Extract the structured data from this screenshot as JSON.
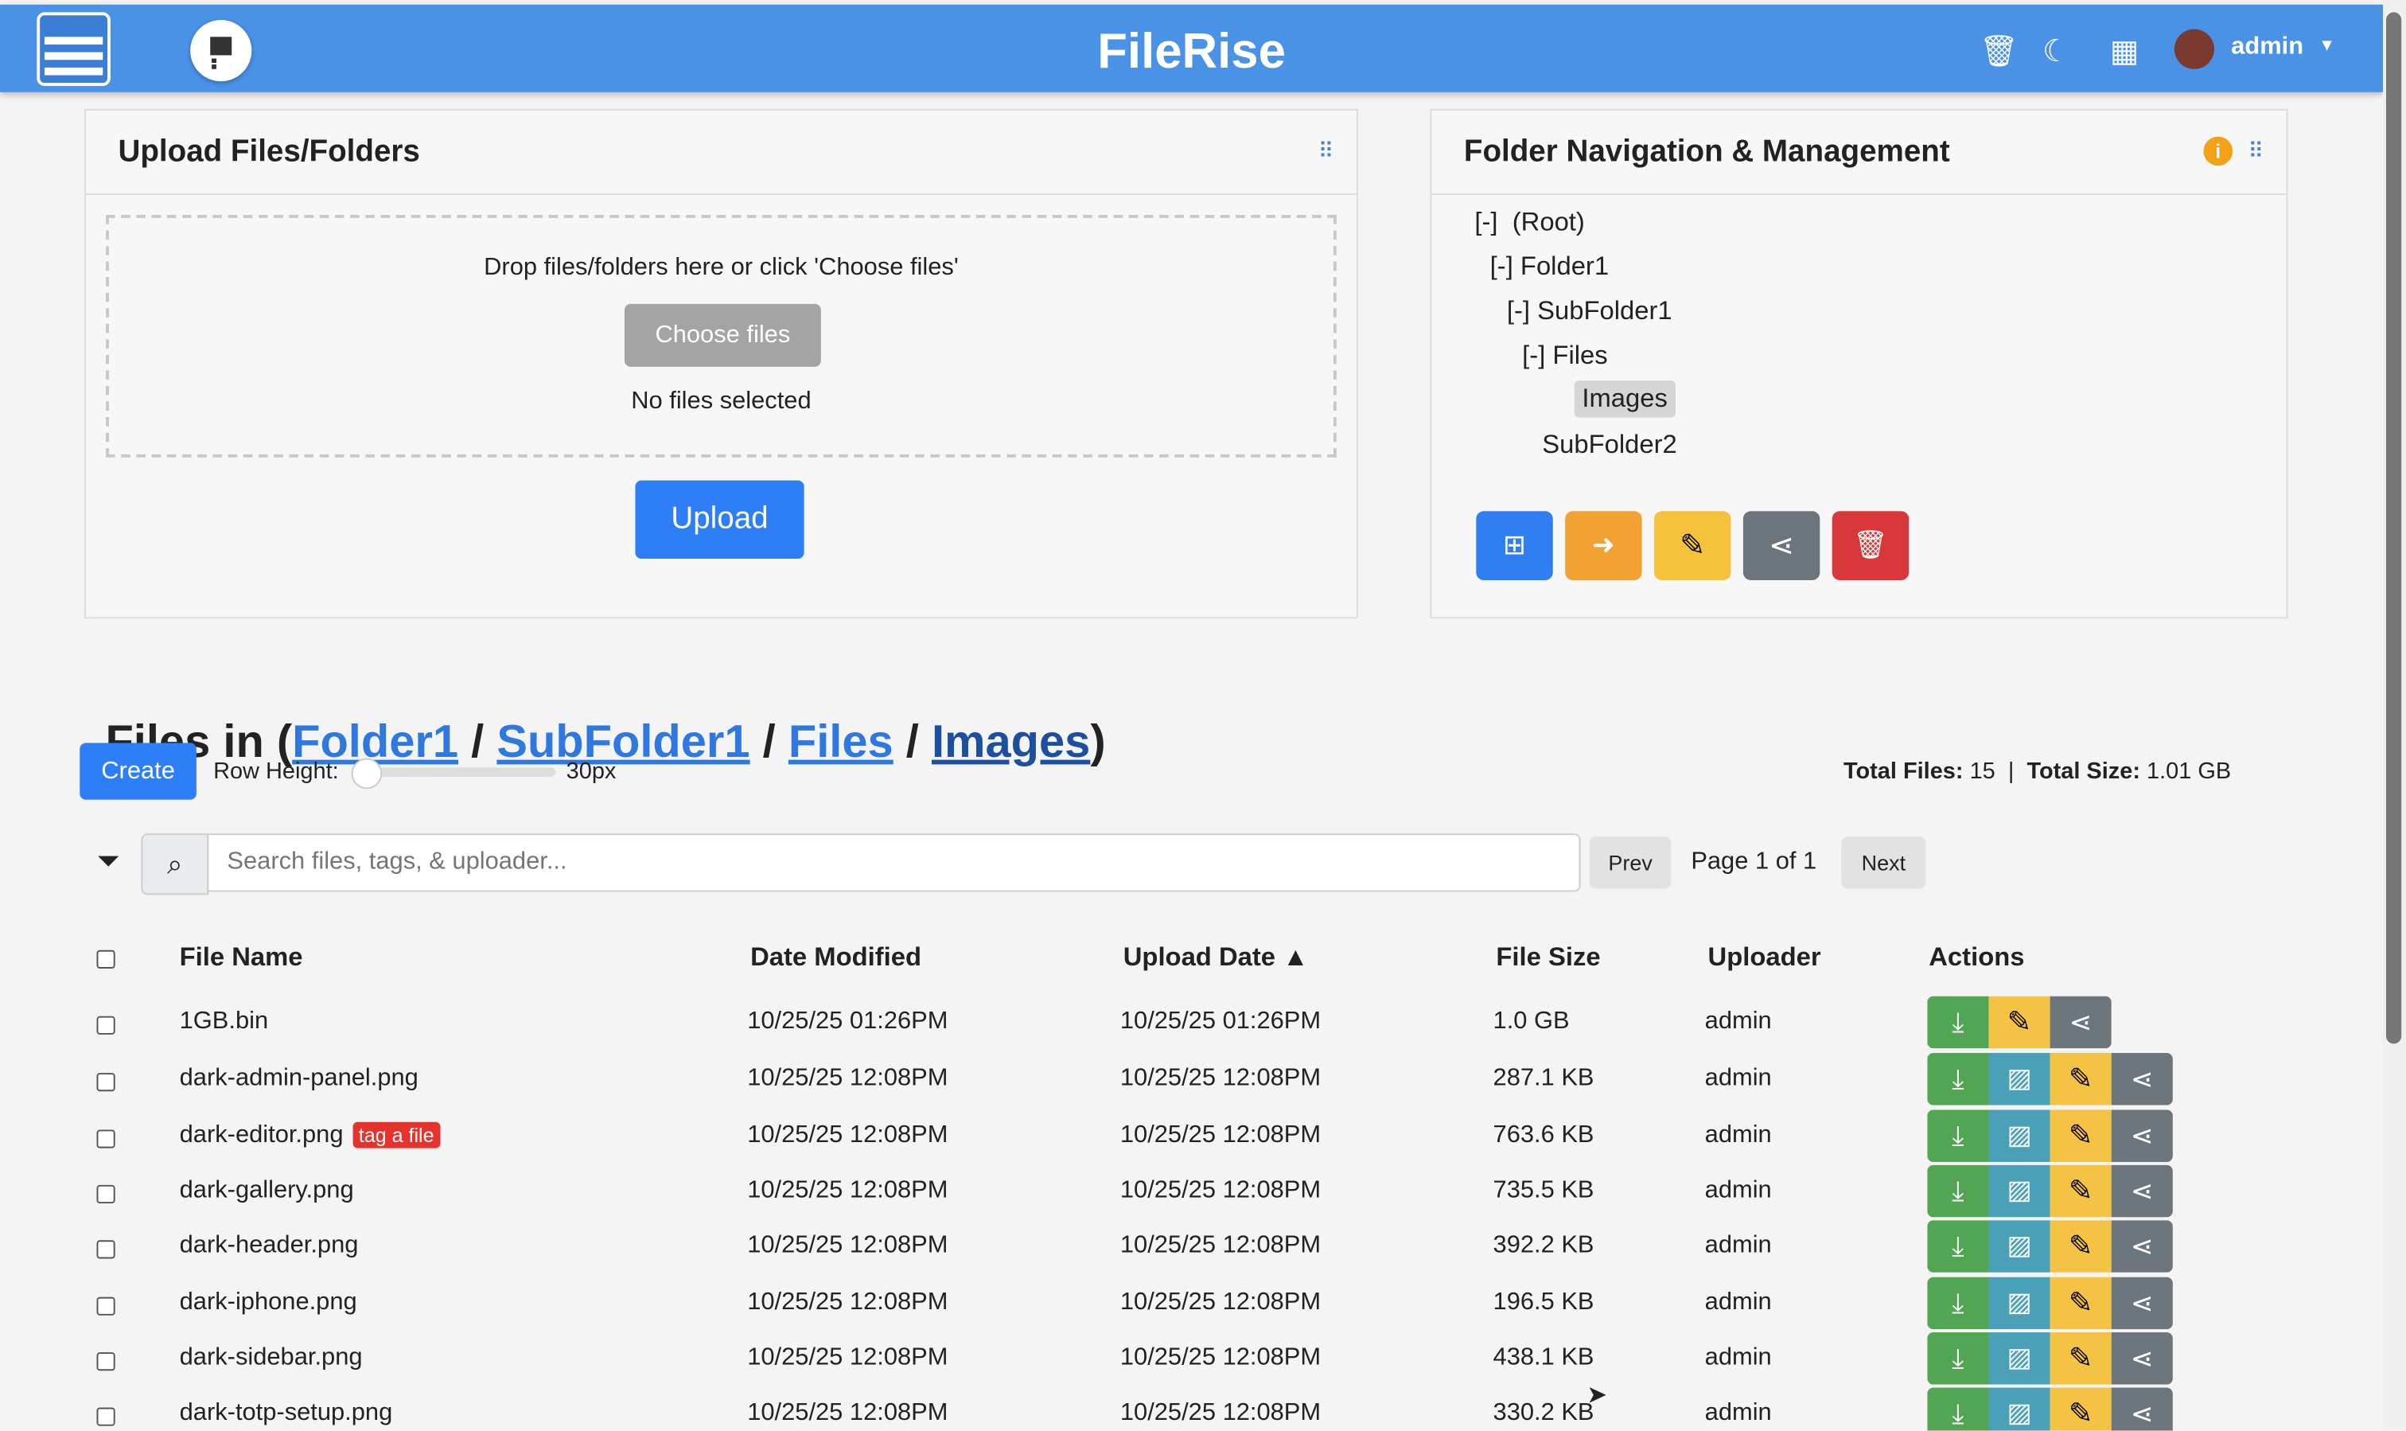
{
  "header": {
    "title": "FileRise",
    "user": "admin",
    "icons": [
      "logo-server-icon",
      "toggle-sidebar-icon",
      "trash-icon",
      "moon-icon",
      "grid-icon",
      "avatar",
      "caret-down-icon"
    ],
    "color": "#4a92e6"
  },
  "upload": {
    "title": "Upload Files/Folders",
    "drop_text": "Drop files/folders here or click 'Choose files'",
    "choose_label": "Choose files",
    "no_files": "No files selected",
    "upload_label": "Upload"
  },
  "folders": {
    "title": "Folder Navigation & Management",
    "tree": [
      {
        "label": "[-]  (Root)"
      },
      {
        "label": "[-] Folder1"
      },
      {
        "label": "[-] SubFolder1"
      },
      {
        "label": "[-] Files"
      },
      {
        "label": "Images",
        "selected": true
      },
      {
        "label": "SubFolder2"
      }
    ],
    "actions": [
      {
        "name": "create-folder",
        "color": "#2f7ef2"
      },
      {
        "name": "move-folder",
        "color": "#f2a233"
      },
      {
        "name": "rename-folder",
        "color": "#f5c33b"
      },
      {
        "name": "share-folder",
        "color": "#6c757d"
      },
      {
        "name": "delete-folder",
        "color": "#d9383a"
      }
    ]
  },
  "files": {
    "title_prefix": "Files in (",
    "crumbs": [
      "Folder1",
      "SubFolder1",
      "Files",
      "Images"
    ],
    "sep": " / ",
    "title_suffix": ")",
    "create_label": "Create",
    "row_height_label": "Row Height:",
    "row_height_value": "30px",
    "row_height_percent": 10,
    "total_files_label": "Total Files:",
    "total_files": "15",
    "total_size_label": "Total Size:",
    "total_size": "1.01 GB",
    "search_placeholder": "Search files, tags, & uploader...",
    "prev": "Prev",
    "page": "Page 1 of 1",
    "next": "Next",
    "columns": [
      "File Name",
      "Date Modified",
      "Upload Date ▲",
      "File Size",
      "Uploader",
      "Actions"
    ],
    "rows": [
      {
        "name": "1GB.bin",
        "modified": "10/25/25 01:26PM",
        "uploaded": "10/25/25 01:26PM",
        "size": "1.0 GB",
        "uploader": "admin",
        "preview": false
      },
      {
        "name": "dark-admin-panel.png",
        "modified": "10/25/25 12:08PM",
        "uploaded": "10/25/25 12:08PM",
        "size": "287.1 KB",
        "uploader": "admin",
        "preview": true
      },
      {
        "name": "dark-editor.png",
        "tag": "tag a file",
        "modified": "10/25/25 12:08PM",
        "uploaded": "10/25/25 12:08PM",
        "size": "763.6 KB",
        "uploader": "admin",
        "preview": true
      },
      {
        "name": "dark-gallery.png",
        "modified": "10/25/25 12:08PM",
        "uploaded": "10/25/25 12:08PM",
        "size": "735.5 KB",
        "uploader": "admin",
        "preview": true
      },
      {
        "name": "dark-header.png",
        "modified": "10/25/25 12:08PM",
        "uploaded": "10/25/25 12:08PM",
        "size": "392.2 KB",
        "uploader": "admin",
        "preview": true
      },
      {
        "name": "dark-iphone.png",
        "modified": "10/25/25 12:08PM",
        "uploaded": "10/25/25 12:08PM",
        "size": "196.5 KB",
        "uploader": "admin",
        "preview": true
      },
      {
        "name": "dark-sidebar.png",
        "modified": "10/25/25 12:08PM",
        "uploaded": "10/25/25 12:08PM",
        "size": "438.1 KB",
        "uploader": "admin",
        "preview": true
      },
      {
        "name": "dark-totp-setup.png",
        "modified": "10/25/25 12:08PM",
        "uploaded": "10/25/25 12:08PM",
        "size": "330.2 KB",
        "uploader": "admin",
        "preview": true
      }
    ]
  }
}
